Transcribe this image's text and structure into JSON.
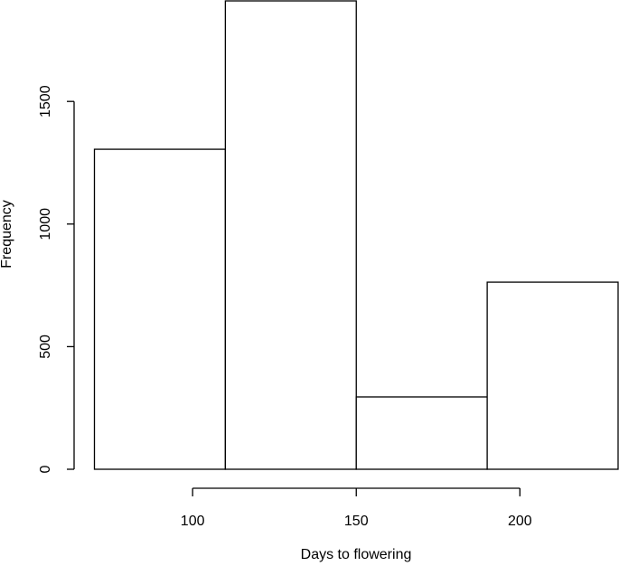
{
  "chart_data": {
    "type": "bar",
    "title": "",
    "xlabel": "Days to flowering",
    "ylabel": "Frequency",
    "bins": [
      {
        "x0": 70,
        "x1": 110,
        "value": 1305
      },
      {
        "x0": 110,
        "x1": 150,
        "value": 1910
      },
      {
        "x0": 150,
        "x1": 190,
        "value": 295
      },
      {
        "x0": 190,
        "x1": 230,
        "value": 763
      }
    ],
    "xlim": [
      70,
      230
    ],
    "ylim": [
      0,
      1910
    ],
    "x_ticks": [
      100,
      150,
      200
    ],
    "x_tick_labels": [
      "100",
      "150",
      "200"
    ],
    "y_ticks": [
      0,
      500,
      1000,
      1500
    ],
    "y_tick_labels": [
      "0",
      "500",
      "1000",
      "1500"
    ],
    "grid": false,
    "legend": "none"
  }
}
